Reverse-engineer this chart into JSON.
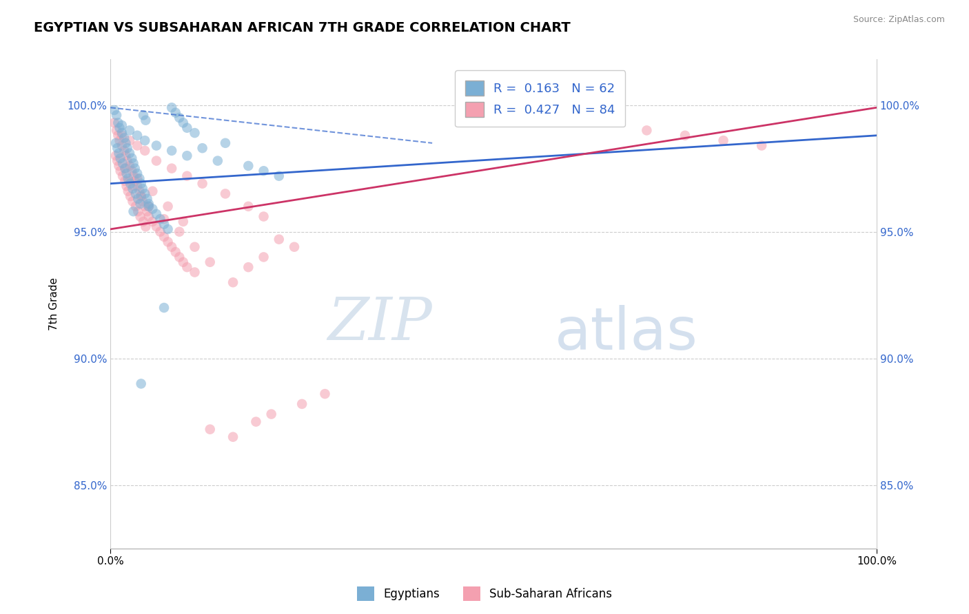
{
  "title": "EGYPTIAN VS SUBSAHARAN AFRICAN 7TH GRADE CORRELATION CHART",
  "source_text": "Source: ZipAtlas.com",
  "ylabel": "7th Grade",
  "xlim": [
    0.0,
    1.0
  ],
  "ylim": [
    0.825,
    1.018
  ],
  "r_blue": 0.163,
  "n_blue": 62,
  "r_pink": 0.427,
  "n_pink": 84,
  "legend_label_blue": "Egyptians",
  "legend_label_pink": "Sub-Saharan Africans",
  "blue_color": "#7bafd4",
  "pink_color": "#f4a0b0",
  "blue_line_color": "#3366cc",
  "pink_line_color": "#cc3366",
  "dot_size": 110,
  "dot_alpha": 0.55,
  "watermark_zip": "ZIP",
  "watermark_atlas": "atlas",
  "blue_scatter_x": [
    0.005,
    0.008,
    0.01,
    0.012,
    0.015,
    0.018,
    0.02,
    0.022,
    0.025,
    0.028,
    0.03,
    0.032,
    0.035,
    0.038,
    0.04,
    0.042,
    0.045,
    0.048,
    0.05,
    0.055,
    0.06,
    0.065,
    0.07,
    0.075,
    0.08,
    0.085,
    0.09,
    0.095,
    0.1,
    0.11,
    0.007,
    0.009,
    0.011,
    0.013,
    0.016,
    0.019,
    0.021,
    0.023,
    0.026,
    0.029,
    0.033,
    0.036,
    0.039,
    0.043,
    0.046,
    0.015,
    0.025,
    0.035,
    0.045,
    0.06,
    0.08,
    0.1,
    0.14,
    0.18,
    0.2,
    0.22,
    0.15,
    0.12,
    0.05,
    0.03,
    0.04,
    0.07
  ],
  "blue_scatter_y": [
    0.998,
    0.996,
    0.993,
    0.991,
    0.989,
    0.987,
    0.985,
    0.983,
    0.981,
    0.979,
    0.977,
    0.975,
    0.973,
    0.971,
    0.969,
    0.967,
    0.965,
    0.963,
    0.961,
    0.959,
    0.957,
    0.955,
    0.953,
    0.951,
    0.999,
    0.997,
    0.995,
    0.993,
    0.991,
    0.989,
    0.985,
    0.983,
    0.981,
    0.979,
    0.977,
    0.975,
    0.973,
    0.971,
    0.969,
    0.967,
    0.965,
    0.963,
    0.961,
    0.996,
    0.994,
    0.992,
    0.99,
    0.988,
    0.986,
    0.984,
    0.982,
    0.98,
    0.978,
    0.976,
    0.974,
    0.972,
    0.985,
    0.983,
    0.96,
    0.958,
    0.89,
    0.92
  ],
  "pink_scatter_x": [
    0.005,
    0.008,
    0.01,
    0.012,
    0.015,
    0.018,
    0.02,
    0.022,
    0.025,
    0.028,
    0.03,
    0.032,
    0.035,
    0.038,
    0.04,
    0.042,
    0.045,
    0.048,
    0.05,
    0.055,
    0.06,
    0.065,
    0.07,
    0.075,
    0.08,
    0.085,
    0.09,
    0.095,
    0.1,
    0.11,
    0.007,
    0.009,
    0.011,
    0.013,
    0.016,
    0.019,
    0.021,
    0.023,
    0.026,
    0.029,
    0.033,
    0.036,
    0.039,
    0.043,
    0.046,
    0.015,
    0.025,
    0.035,
    0.045,
    0.06,
    0.08,
    0.1,
    0.12,
    0.15,
    0.18,
    0.2,
    0.025,
    0.03,
    0.04,
    0.05,
    0.07,
    0.09,
    0.11,
    0.13,
    0.16,
    0.02,
    0.035,
    0.055,
    0.075,
    0.095,
    0.22,
    0.24,
    0.2,
    0.18,
    0.7,
    0.75,
    0.8,
    0.85,
    0.13,
    0.16,
    0.19,
    0.21,
    0.25,
    0.28
  ],
  "pink_scatter_y": [
    0.993,
    0.99,
    0.988,
    0.986,
    0.984,
    0.982,
    0.98,
    0.978,
    0.976,
    0.974,
    0.972,
    0.97,
    0.968,
    0.966,
    0.964,
    0.962,
    0.96,
    0.958,
    0.956,
    0.954,
    0.952,
    0.95,
    0.948,
    0.946,
    0.944,
    0.942,
    0.94,
    0.938,
    0.936,
    0.934,
    0.98,
    0.978,
    0.976,
    0.974,
    0.972,
    0.97,
    0.968,
    0.966,
    0.964,
    0.962,
    0.96,
    0.958,
    0.956,
    0.954,
    0.952,
    0.988,
    0.986,
    0.984,
    0.982,
    0.978,
    0.975,
    0.972,
    0.969,
    0.965,
    0.96,
    0.956,
    0.97,
    0.968,
    0.964,
    0.96,
    0.955,
    0.95,
    0.944,
    0.938,
    0.93,
    0.975,
    0.971,
    0.966,
    0.96,
    0.954,
    0.947,
    0.944,
    0.94,
    0.936,
    0.99,
    0.988,
    0.986,
    0.984,
    0.872,
    0.869,
    0.875,
    0.878,
    0.882,
    0.886
  ],
  "blue_trend_x": [
    0.0,
    1.0
  ],
  "blue_trend_y": [
    0.969,
    0.988
  ],
  "pink_trend_x": [
    0.0,
    1.0
  ],
  "pink_trend_y": [
    0.951,
    0.999
  ],
  "dash_line_x": [
    0.0,
    0.42
  ],
  "dash_line_y": [
    0.999,
    0.985
  ]
}
